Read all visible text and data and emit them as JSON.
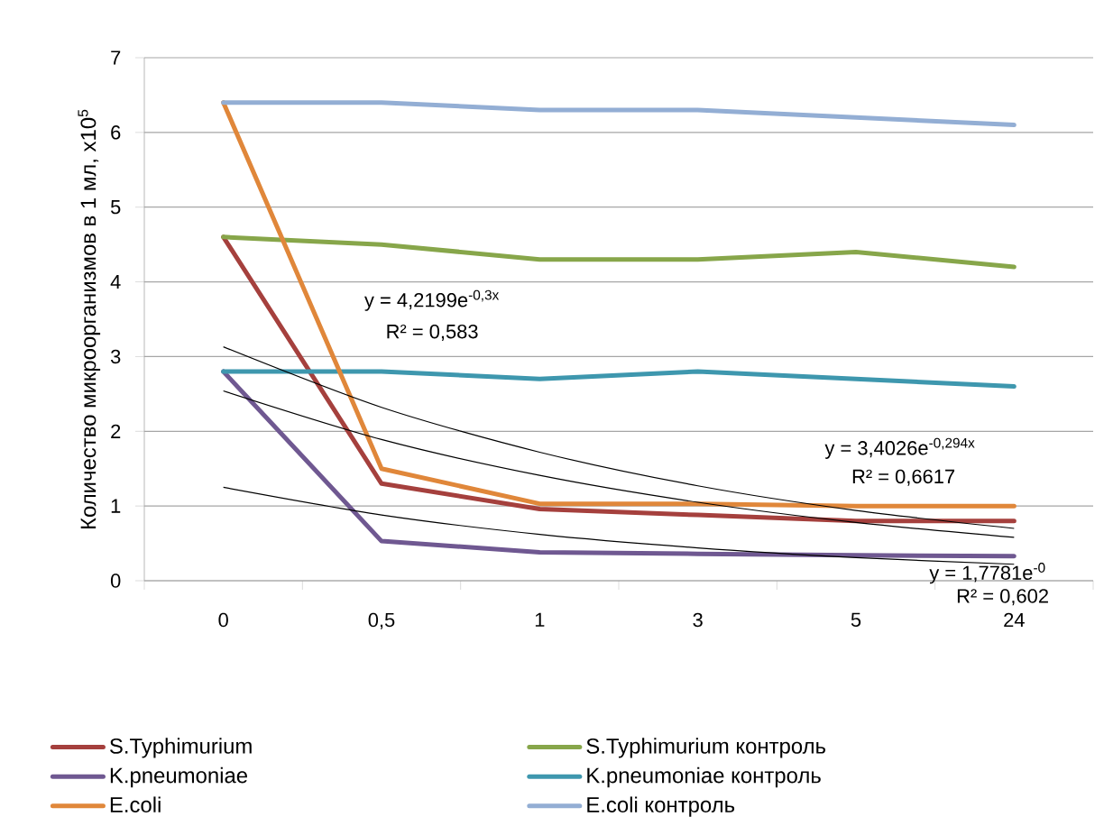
{
  "chart_data": {
    "type": "line",
    "ylabel": "Количество микроорганизмов в 1 мл, x10$^{5}$",
    "categories": [
      "0",
      "0,5",
      "1",
      "3",
      "5",
      "24"
    ],
    "ylim": [
      0,
      7
    ],
    "yticks": [
      0,
      1,
      2,
      3,
      4,
      5,
      6,
      7
    ],
    "grid": "y",
    "legend": "bottom",
    "series": [
      {
        "name": "S.Typhimurium",
        "color": "#a5403d",
        "values": [
          4.6,
          1.3,
          0.96,
          0.88,
          0.8,
          0.8
        ]
      },
      {
        "name": "S.Typhimurium контроль",
        "color": "#87a64a",
        "values": [
          4.6,
          4.5,
          4.3,
          4.3,
          4.4,
          4.2
        ]
      },
      {
        "name": "K.pneumoniae",
        "color": "#6f5891",
        "values": [
          2.8,
          0.53,
          0.38,
          0.36,
          0.34,
          0.33
        ]
      },
      {
        "name": "K.pneumoniae контроль",
        "color": "#3e97ae",
        "values": [
          2.8,
          2.8,
          2.7,
          2.8,
          2.7,
          2.6
        ]
      },
      {
        "name": "E.coli",
        "color": "#e0873a",
        "values": [
          6.4,
          1.5,
          1.03,
          1.03,
          1.0,
          1.0
        ]
      },
      {
        "name": "E.coli контроль",
        "color": "#93aed4",
        "values": [
          6.4,
          6.4,
          6.3,
          6.3,
          6.2,
          6.1
        ]
      },
      {
        "type": "line",
        "color": "#000000",
        "values": [
          3.13,
          2.32,
          1.72,
          1.27,
          0.94,
          0.7
        ]
      },
      {
        "type": "line",
        "color": "#000000",
        "values": [
          2.54,
          1.89,
          1.41,
          1.05,
          0.78,
          0.58
        ]
      },
      {
        "type": "line",
        "color": "#000000",
        "values": [
          1.25,
          0.88,
          0.62,
          0.44,
          0.31,
          0.22
        ]
      }
    ],
    "annotations": [
      "y = 4,2199e$^{-0,3x}$",
      "R² = 0,583",
      "y = 3,4026e$^{-0,294x}$",
      "R² = 0,6617",
      "y = 1,7781e$^{-0}$",
      "R² = 0,602"
    ]
  }
}
